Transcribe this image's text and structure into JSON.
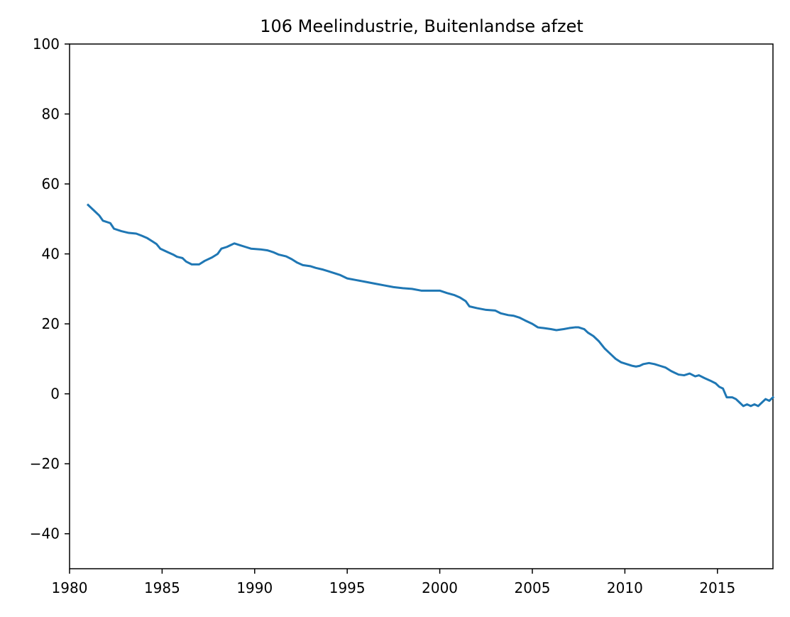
{
  "chart_data": {
    "type": "line",
    "title": "106 Meelindustrie, Buitenlandse afzet",
    "xlabel": "",
    "ylabel": "",
    "xlim": [
      1980,
      2018
    ],
    "ylim": [
      -50,
      100
    ],
    "grid": false,
    "legend": "none",
    "x_ticks": [
      1980,
      1985,
      1990,
      1995,
      2000,
      2005,
      2010,
      2015
    ],
    "x_tick_labels": [
      "1980",
      "1985",
      "1990",
      "1995",
      "2000",
      "2005",
      "2010",
      "2015"
    ],
    "y_ticks": [
      -40,
      -20,
      0,
      20,
      40,
      60,
      80,
      100
    ],
    "y_tick_labels": [
      "−40",
      "−20",
      "0",
      "20",
      "40",
      "60",
      "80",
      "100"
    ],
    "series": [
      {
        "color": "#1f77b4",
        "points": [
          [
            1981.0,
            54.0
          ],
          [
            1981.3,
            52.5
          ],
          [
            1981.6,
            51.0
          ],
          [
            1981.8,
            49.5
          ],
          [
            1982.2,
            48.8
          ],
          [
            1982.4,
            47.2
          ],
          [
            1982.8,
            46.5
          ],
          [
            1983.2,
            46.0
          ],
          [
            1983.6,
            45.8
          ],
          [
            1983.9,
            45.2
          ],
          [
            1984.2,
            44.5
          ],
          [
            1984.5,
            43.5
          ],
          [
            1984.7,
            42.8
          ],
          [
            1984.9,
            41.5
          ],
          [
            1985.3,
            40.5
          ],
          [
            1985.6,
            39.8
          ],
          [
            1985.8,
            39.2
          ],
          [
            1986.1,
            38.8
          ],
          [
            1986.3,
            37.8
          ],
          [
            1986.6,
            37.0
          ],
          [
            1987.0,
            37.0
          ],
          [
            1987.3,
            38.0
          ],
          [
            1987.7,
            39.0
          ],
          [
            1988.0,
            40.0
          ],
          [
            1988.2,
            41.5
          ],
          [
            1988.5,
            42.0
          ],
          [
            1988.7,
            42.5
          ],
          [
            1988.9,
            43.0
          ],
          [
            1989.2,
            42.5
          ],
          [
            1989.5,
            42.0
          ],
          [
            1989.8,
            41.5
          ],
          [
            1990.3,
            41.3
          ],
          [
            1990.7,
            41.0
          ],
          [
            1991.0,
            40.5
          ],
          [
            1991.3,
            39.8
          ],
          [
            1991.7,
            39.3
          ],
          [
            1992.0,
            38.5
          ],
          [
            1992.3,
            37.5
          ],
          [
            1992.6,
            36.8
          ],
          [
            1993.0,
            36.5
          ],
          [
            1993.3,
            36.0
          ],
          [
            1993.7,
            35.5
          ],
          [
            1994.0,
            35.0
          ],
          [
            1994.3,
            34.5
          ],
          [
            1994.6,
            34.0
          ],
          [
            1995.0,
            33.0
          ],
          [
            1995.5,
            32.5
          ],
          [
            1996.0,
            32.0
          ],
          [
            1996.5,
            31.5
          ],
          [
            1997.0,
            31.0
          ],
          [
            1997.5,
            30.5
          ],
          [
            1998.0,
            30.2
          ],
          [
            1998.5,
            30.0
          ],
          [
            1999.0,
            29.5
          ],
          [
            1999.5,
            29.5
          ],
          [
            2000.0,
            29.5
          ],
          [
            2000.4,
            28.8
          ],
          [
            2000.8,
            28.2
          ],
          [
            2001.1,
            27.5
          ],
          [
            2001.4,
            26.5
          ],
          [
            2001.6,
            25.0
          ],
          [
            2002.0,
            24.5
          ],
          [
            2002.5,
            24.0
          ],
          [
            2003.0,
            23.8
          ],
          [
            2003.3,
            23.0
          ],
          [
            2003.7,
            22.5
          ],
          [
            2004.0,
            22.3
          ],
          [
            2004.3,
            21.8
          ],
          [
            2004.6,
            21.0
          ],
          [
            2005.0,
            20.0
          ],
          [
            2005.3,
            19.0
          ],
          [
            2005.6,
            18.8
          ],
          [
            2006.0,
            18.5
          ],
          [
            2006.3,
            18.2
          ],
          [
            2006.7,
            18.5
          ],
          [
            2007.0,
            18.8
          ],
          [
            2007.3,
            19.0
          ],
          [
            2007.5,
            19.0
          ],
          [
            2007.8,
            18.5
          ],
          [
            2008.0,
            17.5
          ],
          [
            2008.3,
            16.5
          ],
          [
            2008.6,
            15.0
          ],
          [
            2008.9,
            13.0
          ],
          [
            2009.1,
            12.0
          ],
          [
            2009.3,
            11.0
          ],
          [
            2009.5,
            10.0
          ],
          [
            2009.8,
            9.0
          ],
          [
            2010.1,
            8.5
          ],
          [
            2010.4,
            8.0
          ],
          [
            2010.6,
            7.8
          ],
          [
            2010.8,
            8.0
          ],
          [
            2011.0,
            8.5
          ],
          [
            2011.3,
            8.8
          ],
          [
            2011.6,
            8.5
          ],
          [
            2011.9,
            8.0
          ],
          [
            2012.2,
            7.5
          ],
          [
            2012.5,
            6.5
          ],
          [
            2012.7,
            6.0
          ],
          [
            2012.9,
            5.5
          ],
          [
            2013.2,
            5.3
          ],
          [
            2013.5,
            5.8
          ],
          [
            2013.8,
            5.0
          ],
          [
            2014.0,
            5.3
          ],
          [
            2014.3,
            4.5
          ],
          [
            2014.6,
            3.8
          ],
          [
            2014.9,
            3.0
          ],
          [
            2015.1,
            2.0
          ],
          [
            2015.3,
            1.5
          ],
          [
            2015.5,
            -1.0
          ],
          [
            2015.8,
            -1.0
          ],
          [
            2016.0,
            -1.5
          ],
          [
            2016.2,
            -2.5
          ],
          [
            2016.4,
            -3.5
          ],
          [
            2016.6,
            -3.0
          ],
          [
            2016.8,
            -3.5
          ],
          [
            2017.0,
            -3.0
          ],
          [
            2017.2,
            -3.5
          ],
          [
            2017.4,
            -2.5
          ],
          [
            2017.6,
            -1.5
          ],
          [
            2017.8,
            -2.0
          ],
          [
            2018.0,
            -1.0
          ]
        ]
      }
    ]
  }
}
